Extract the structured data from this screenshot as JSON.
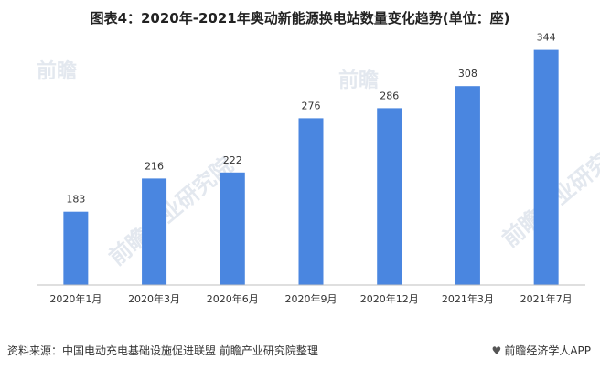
{
  "title": "图表4：2020年-2021年奥动新能源换电站数量变化趋势(单位：座)",
  "source_text": "资料来源：中国电动充电基础设施促进联盟 前瞻产业研究院整理",
  "brand_text": "前瞻经济学人APP",
  "icon_names": {
    "brand_logo": "qianzhan-logo-icon"
  },
  "colors": {
    "bar": "#4A86E0",
    "baseline": "#bfbfbf",
    "text": "#333333"
  },
  "watermarks": [
    "前瞻",
    "前瞻",
    "前瞻产业研究院",
    "前瞻产业研究院"
  ],
  "chart_data": {
    "type": "bar",
    "categories": [
      "2020年1月",
      "2020年3月",
      "2020年6月",
      "2020年9月",
      "2020年12月",
      "2021年3月",
      "2021年7月"
    ],
    "values": [
      183,
      216,
      222,
      276,
      286,
      308,
      344
    ],
    "title": "图表4：2020年-2021年奥动新能源换电站数量变化趋势(单位：座)",
    "xlabel": "",
    "ylabel": "",
    "ylim": [
      0,
      380
    ],
    "grid": false,
    "legend": "none",
    "data_labels": true
  }
}
